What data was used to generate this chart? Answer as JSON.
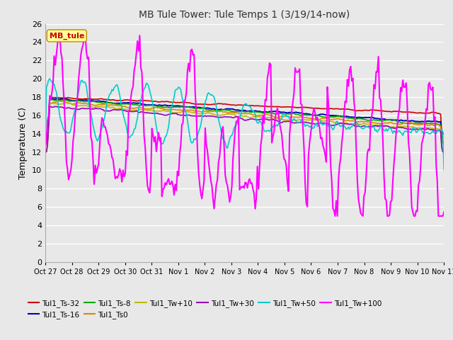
{
  "title": "MB Tule Tower: Tule Temps 1 (3/19/14-now)",
  "ylabel": "Temperature (C)",
  "bg_color": "#e8e8e8",
  "ylim": [
    0,
    26
  ],
  "yticks": [
    0,
    2,
    4,
    6,
    8,
    10,
    12,
    14,
    16,
    18,
    20,
    22,
    24,
    26
  ],
  "x_labels": [
    "Oct 27",
    "Oct 28",
    "Oct 29",
    "Oct 30",
    "Oct 31",
    "Nov 1",
    "Nov 2",
    "Nov 3",
    "Nov 4",
    "Nov 5",
    "Nov 6",
    "Nov 7",
    "Nov 8",
    "Nov 9",
    "Nov 10",
    "Nov 11"
  ],
  "series": {
    "Tul1_Ts-32": {
      "color": "#cc0000",
      "lw": 1.2
    },
    "Tul1_Ts-16": {
      "color": "#0000bb",
      "lw": 1.4
    },
    "Tul1_Ts-8": {
      "color": "#00aa00",
      "lw": 1.2
    },
    "Tul1_Ts0": {
      "color": "#dd8800",
      "lw": 1.2
    },
    "Tul1_Tw+10": {
      "color": "#bbbb00",
      "lw": 1.2
    },
    "Tul1_Tw+30": {
      "color": "#9900bb",
      "lw": 1.2
    },
    "Tul1_Tw+50": {
      "color": "#00cccc",
      "lw": 1.2
    },
    "Tul1_Tw+100": {
      "color": "#ff00ff",
      "lw": 1.5
    }
  },
  "annotation": {
    "text": "MB_tule",
    "color": "#cc0000",
    "bg": "#ffff99",
    "fontsize": 8
  },
  "legend_order": [
    "Tul1_Ts-32",
    "Tul1_Ts-16",
    "Tul1_Ts-8",
    "Tul1_Ts0",
    "Tul1_Tw+10",
    "Tul1_Tw+30",
    "Tul1_Tw+50",
    "Tul1_Tw+100"
  ]
}
